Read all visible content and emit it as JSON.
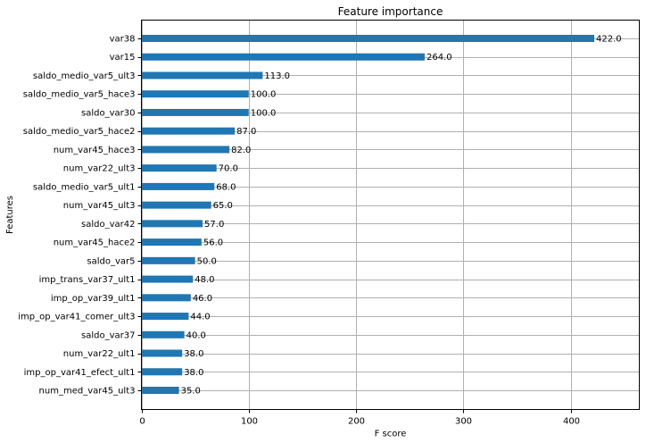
{
  "chart_data": {
    "type": "bar",
    "orientation": "horizontal",
    "title": "Feature importance",
    "xlabel": "F score",
    "ylabel": "Features",
    "xlim": [
      0,
      464
    ],
    "xticks": [
      "0",
      "100",
      "200",
      "300",
      "400"
    ],
    "grid": true,
    "bar_color": "#1f77b4",
    "categories": [
      "var38",
      "var15",
      "saldo_medio_var5_ult3",
      "saldo_medio_var5_hace3",
      "saldo_var30",
      "saldo_medio_var5_hace2",
      "num_var45_hace3",
      "num_var22_ult3",
      "saldo_medio_var5_ult1",
      "num_var45_ult3",
      "saldo_var42",
      "num_var45_hace2",
      "saldo_var5",
      "imp_trans_var37_ult1",
      "imp_op_var39_ult1",
      "imp_op_var41_comer_ult3",
      "saldo_var37",
      "num_var22_ult1",
      "imp_op_var41_efect_ult1",
      "num_med_var45_ult3"
    ],
    "values": [
      422,
      264,
      113,
      100,
      100,
      87,
      82,
      70,
      68,
      65,
      57,
      56,
      50,
      48,
      46,
      44,
      40,
      38,
      38,
      35
    ],
    "value_labels": [
      "422.0",
      "264.0",
      "113.0",
      "100.0",
      "100.0",
      "87.0",
      "82.0",
      "70.0",
      "68.0",
      "65.0",
      "57.0",
      "56.0",
      "50.0",
      "48.0",
      "46.0",
      "44.0",
      "40.0",
      "38.0",
      "38.0",
      "35.0"
    ]
  }
}
